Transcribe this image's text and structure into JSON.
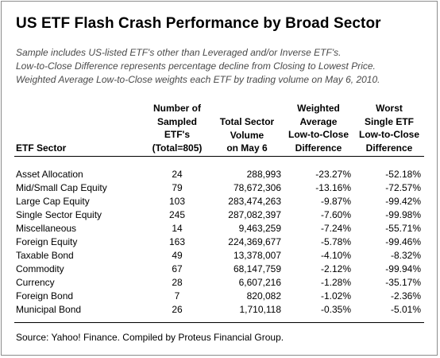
{
  "title": "US ETF Flash Crash Performance by Broad Sector",
  "notes": [
    "Sample includes US-listed ETF's other than Leveraged and/or Inverse ETF's.",
    "Low-to-Close Difference represents percentage decline from Closing to Lowest Price.",
    "Weighted Average Low-to-Close weights each ETF by trading volume on May 6, 2010."
  ],
  "columns": {
    "sector": [
      "ETF Sector"
    ],
    "num_sampled": [
      "Number of",
      "Sampled",
      "ETF's",
      "(Total=805)"
    ],
    "volume": [
      "Total Sector",
      "Volume",
      "on May 6"
    ],
    "weighted_avg": [
      "Weighted",
      "Average",
      "Low-to-Close",
      "Difference"
    ],
    "worst": [
      "Worst",
      "Single ETF",
      "Low-to-Close",
      "Difference"
    ]
  },
  "rows": [
    {
      "sector": "Asset Allocation",
      "num": "24",
      "volume": "288,993",
      "wavg": "-23.27%",
      "worst": "-52.18%"
    },
    {
      "sector": "Mid/Small Cap Equity",
      "num": "79",
      "volume": "78,672,306",
      "wavg": "-13.16%",
      "worst": "-72.57%"
    },
    {
      "sector": "Large Cap Equity",
      "num": "103",
      "volume": "283,474,263",
      "wavg": "-9.87%",
      "worst": "-99.42%"
    },
    {
      "sector": "Single Sector Equity",
      "num": "245",
      "volume": "287,082,397",
      "wavg": "-7.60%",
      "worst": "-99.98%"
    },
    {
      "sector": "Miscellaneous",
      "num": "14",
      "volume": "9,463,259",
      "wavg": "-7.24%",
      "worst": "-55.71%"
    },
    {
      "sector": "Foreign Equity",
      "num": "163",
      "volume": "224,369,677",
      "wavg": "-5.78%",
      "worst": "-99.46%"
    },
    {
      "sector": "Taxable Bond",
      "num": "49",
      "volume": "13,378,007",
      "wavg": "-4.10%",
      "worst": "-8.32%"
    },
    {
      "sector": "Commodity",
      "num": "67",
      "volume": "68,147,759",
      "wavg": "-2.12%",
      "worst": "-99.94%"
    },
    {
      "sector": "Currency",
      "num": "28",
      "volume": "6,607,216",
      "wavg": "-1.28%",
      "worst": "-35.17%"
    },
    {
      "sector": "Foreign Bond",
      "num": "7",
      "volume": "820,082",
      "wavg": "-1.02%",
      "worst": "-2.36%"
    },
    {
      "sector": "Municipal Bond",
      "num": "26",
      "volume": "1,710,118",
      "wavg": "-0.35%",
      "worst": "-5.01%"
    }
  ],
  "source": "Source: Yahoo! Finance. Compiled by Proteus Financial Group."
}
